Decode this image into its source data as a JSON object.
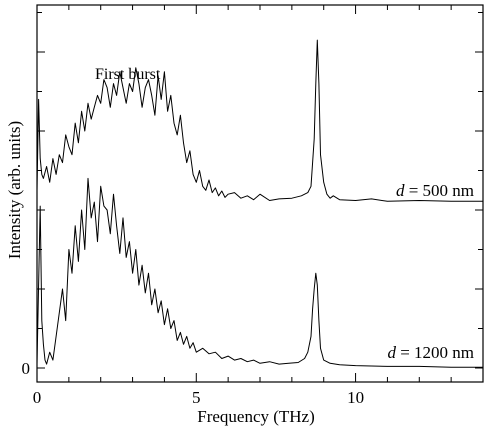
{
  "chart_data": {
    "type": "line",
    "title": "",
    "xlabel": "Frequency (THz)",
    "ylabel": "Intensity (arb. units)",
    "xlim": [
      0,
      14
    ],
    "ylim": [
      0,
      4.25
    ],
    "x_ticks": [
      0,
      5,
      10
    ],
    "y_ticks": [
      0
    ],
    "x_minor_step": 1,
    "y_minor_step": 0.5,
    "grid": false,
    "annotation": "First burst",
    "series": [
      {
        "name": "d = 500 nm",
        "label_prefix": "d",
        "label_suffix": " = 500 nm",
        "offset": 2.1,
        "x": [
          0,
          0.05,
          0.1,
          0.15,
          0.2,
          0.3,
          0.4,
          0.5,
          0.6,
          0.7,
          0.8,
          0.9,
          1.0,
          1.1,
          1.2,
          1.3,
          1.4,
          1.5,
          1.6,
          1.7,
          1.8,
          1.9,
          2.0,
          2.1,
          2.2,
          2.3,
          2.4,
          2.5,
          2.6,
          2.7,
          2.8,
          2.9,
          3.0,
          3.1,
          3.2,
          3.3,
          3.4,
          3.5,
          3.6,
          3.7,
          3.8,
          3.9,
          4.0,
          4.1,
          4.2,
          4.3,
          4.4,
          4.5,
          4.6,
          4.7,
          4.8,
          4.9,
          5.0,
          5.1,
          5.2,
          5.3,
          5.4,
          5.5,
          5.6,
          5.7,
          5.8,
          5.9,
          6.0,
          6.2,
          6.4,
          6.6,
          6.8,
          7.0,
          7.3,
          7.6,
          8.0,
          8.3,
          8.5,
          8.6,
          8.7,
          8.75,
          8.8,
          8.85,
          8.9,
          9.0,
          9.1,
          9.2,
          9.3,
          9.5,
          10.0,
          10.5,
          11.0,
          12.0,
          13.0,
          14.0
        ],
        "y": [
          0.15,
          1.3,
          0.55,
          0.35,
          0.3,
          0.45,
          0.25,
          0.55,
          0.35,
          0.6,
          0.5,
          0.85,
          0.7,
          0.6,
          1.0,
          0.75,
          1.15,
          0.9,
          1.25,
          1.05,
          1.2,
          1.35,
          1.25,
          1.55,
          1.45,
          1.2,
          1.5,
          1.35,
          1.65,
          1.45,
          1.25,
          1.5,
          1.4,
          1.7,
          1.5,
          1.2,
          1.45,
          1.55,
          1.35,
          1.1,
          1.6,
          1.3,
          1.65,
          1.15,
          1.35,
          1.0,
          0.85,
          1.1,
          0.75,
          0.5,
          0.65,
          0.35,
          0.25,
          0.4,
          0.2,
          0.15,
          0.28,
          0.12,
          0.18,
          0.08,
          0.14,
          0.06,
          0.1,
          0.12,
          0.05,
          0.08,
          0.03,
          0.1,
          0.02,
          0.04,
          0.05,
          0.08,
          0.12,
          0.2,
          0.8,
          1.5,
          2.05,
          1.5,
          0.6,
          0.25,
          0.1,
          0.05,
          0.08,
          0.03,
          0.02,
          0.04,
          0.01,
          0.02,
          0.01,
          0.01
        ]
      },
      {
        "name": "d = 1200 nm",
        "label_prefix": "d",
        "label_suffix": " = 1200 nm",
        "offset": 0,
        "x": [
          0,
          0.1,
          0.15,
          0.2,
          0.25,
          0.3,
          0.4,
          0.5,
          0.6,
          0.7,
          0.8,
          0.9,
          1.0,
          1.1,
          1.2,
          1.3,
          1.4,
          1.5,
          1.6,
          1.7,
          1.8,
          1.9,
          2.0,
          2.1,
          2.2,
          2.3,
          2.4,
          2.5,
          2.6,
          2.7,
          2.8,
          2.9,
          3.0,
          3.1,
          3.2,
          3.3,
          3.4,
          3.5,
          3.6,
          3.7,
          3.8,
          3.9,
          4.0,
          4.1,
          4.2,
          4.3,
          4.4,
          4.5,
          4.6,
          4.7,
          4.8,
          4.9,
          5.0,
          5.2,
          5.4,
          5.6,
          5.8,
          6.0,
          6.2,
          6.4,
          6.6,
          6.8,
          7.0,
          7.3,
          7.6,
          7.9,
          8.2,
          8.4,
          8.5,
          8.6,
          8.65,
          8.7,
          8.75,
          8.8,
          8.85,
          8.9,
          9.0,
          9.2,
          9.5,
          10.0,
          11.0,
          12.0,
          13.0,
          14.0
        ],
        "y": [
          0.05,
          2.05,
          0.6,
          0.3,
          0.1,
          0.05,
          0.2,
          0.1,
          0.4,
          0.7,
          1.0,
          0.6,
          1.5,
          1.2,
          1.8,
          1.35,
          2.0,
          1.5,
          2.4,
          1.9,
          2.1,
          1.6,
          2.3,
          2.05,
          2.0,
          1.7,
          2.2,
          1.8,
          1.45,
          1.9,
          1.4,
          1.6,
          1.2,
          1.5,
          1.05,
          1.3,
          0.95,
          1.2,
          0.8,
          1.0,
          0.7,
          0.85,
          0.55,
          0.75,
          0.5,
          0.6,
          0.35,
          0.45,
          0.3,
          0.4,
          0.25,
          0.32,
          0.2,
          0.25,
          0.18,
          0.2,
          0.12,
          0.15,
          0.1,
          0.12,
          0.08,
          0.1,
          0.06,
          0.08,
          0.05,
          0.06,
          0.07,
          0.12,
          0.2,
          0.4,
          0.75,
          1.0,
          1.2,
          1.05,
          0.6,
          0.25,
          0.1,
          0.06,
          0.04,
          0.03,
          0.02,
          0.02,
          0.01,
          0.01
        ]
      }
    ]
  }
}
